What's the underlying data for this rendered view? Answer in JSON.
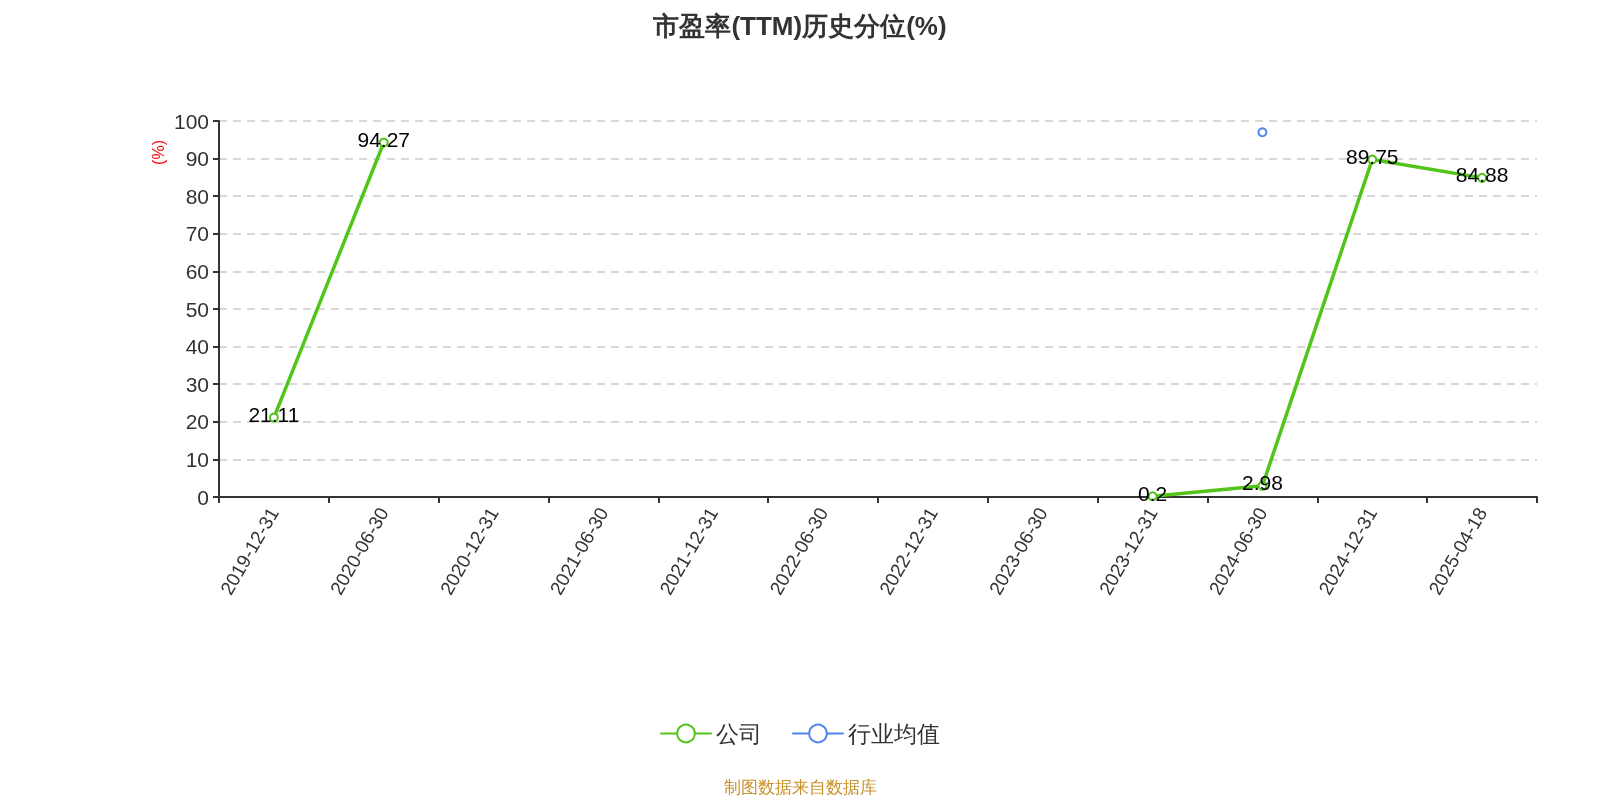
{
  "chart_data": {
    "type": "line",
    "title": "市盈率(TTM)历史分位(%)",
    "ylabel": "(%)",
    "annotations": [
      "制图数据来自数据库"
    ],
    "categories": [
      "2019-12-31",
      "2020-06-30",
      "2020-12-31",
      "2021-06-30",
      "2021-12-31",
      "2022-06-30",
      "2022-12-31",
      "2023-06-30",
      "2023-12-31",
      "2024-06-30",
      "2024-12-31",
      "2025-04-18"
    ],
    "series": [
      {
        "name": "公司",
        "color": "#52c41a",
        "values": [
          21.11,
          94.27,
          null,
          null,
          null,
          null,
          null,
          null,
          0.2,
          2.98,
          89.75,
          84.88
        ],
        "value_labels": [
          "21.11",
          "94.27",
          null,
          null,
          null,
          null,
          null,
          null,
          "0.2",
          "2.98",
          "89.75",
          "84.88"
        ]
      },
      {
        "name": "行业均值",
        "color": "#5087ec",
        "values": [
          null,
          null,
          null,
          null,
          null,
          null,
          null,
          null,
          null,
          97,
          null,
          null
        ]
      }
    ],
    "ylim": [
      0,
      100
    ],
    "yticks": [
      0,
      10,
      20,
      30,
      40,
      50,
      60,
      70,
      80,
      90,
      100
    ],
    "grid": "y",
    "legend": "bottom",
    "marker": "circle",
    "line_style": "solid"
  }
}
